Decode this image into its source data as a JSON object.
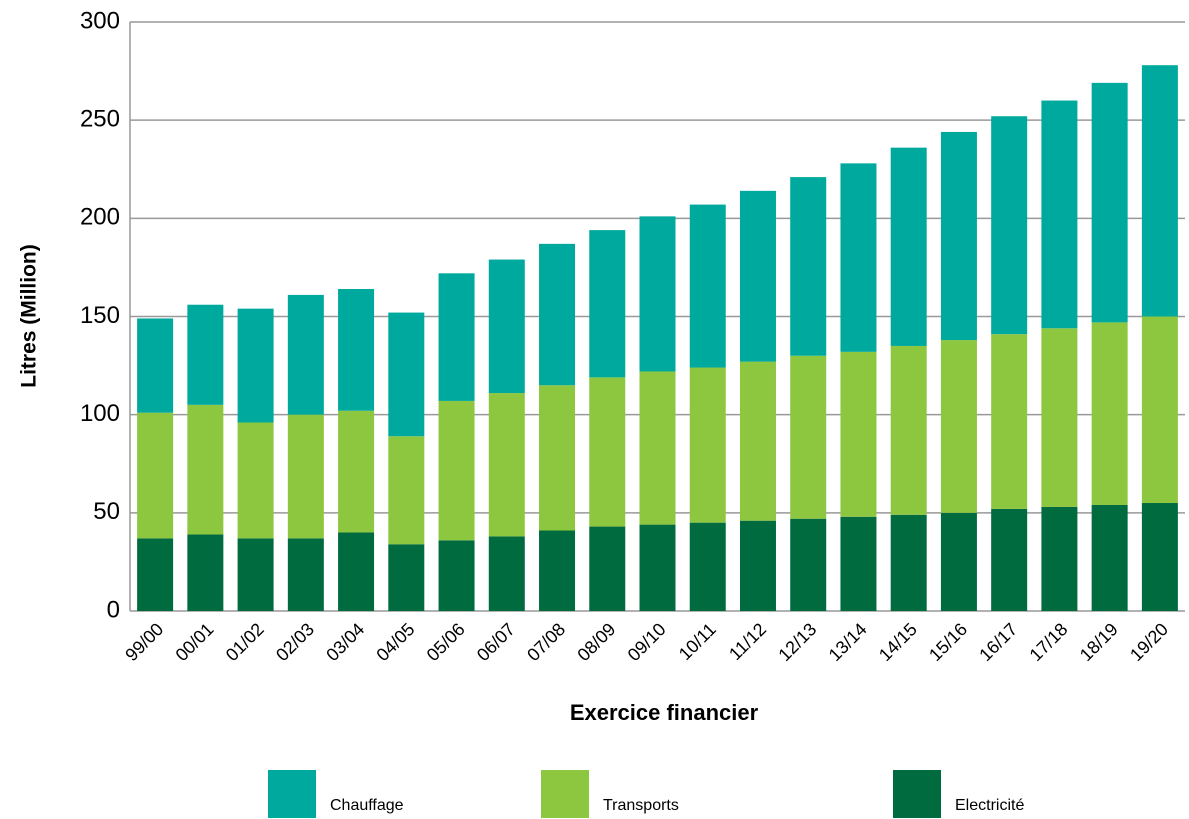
{
  "chart_data": {
    "type": "stacked_bar",
    "xlabel": "Exercice financier",
    "ylabel": "Litres (Million)",
    "categories": [
      "99/00",
      "00/01",
      "01/02",
      "02/03",
      "03/04",
      "04/05",
      "05/06",
      "06/07",
      "07/08",
      "08/09",
      "09/10",
      "10/11",
      "11/12",
      "12/13",
      "13/14",
      "14/15",
      "15/16",
      "16/17",
      "17/18",
      "18/19",
      "19/20"
    ],
    "series": [
      {
        "name": "Electricité",
        "color": "#006b3f",
        "values": [
          37,
          39,
          37,
          37,
          40,
          34,
          36,
          38,
          41,
          43,
          44,
          45,
          46,
          47,
          48,
          49,
          50,
          52,
          53,
          54,
          55
        ]
      },
      {
        "name": "Transports",
        "color": "#8dc63f",
        "values": [
          64,
          66,
          59,
          63,
          62,
          55,
          71,
          73,
          74,
          76,
          78,
          79,
          81,
          83,
          84,
          86,
          88,
          89,
          91,
          93,
          95
        ]
      },
      {
        "name": "Chauffage",
        "color": "#00a99d",
        "values": [
          48,
          51,
          58,
          61,
          62,
          63,
          65,
          68,
          72,
          75,
          79,
          83,
          87,
          91,
          96,
          101,
          106,
          111,
          116,
          122,
          128
        ]
      }
    ],
    "ylim": [
      0,
      300
    ],
    "yticks": [
      0,
      50,
      100,
      150,
      200,
      250,
      300
    ],
    "grid": true,
    "legend": "bottom"
  }
}
